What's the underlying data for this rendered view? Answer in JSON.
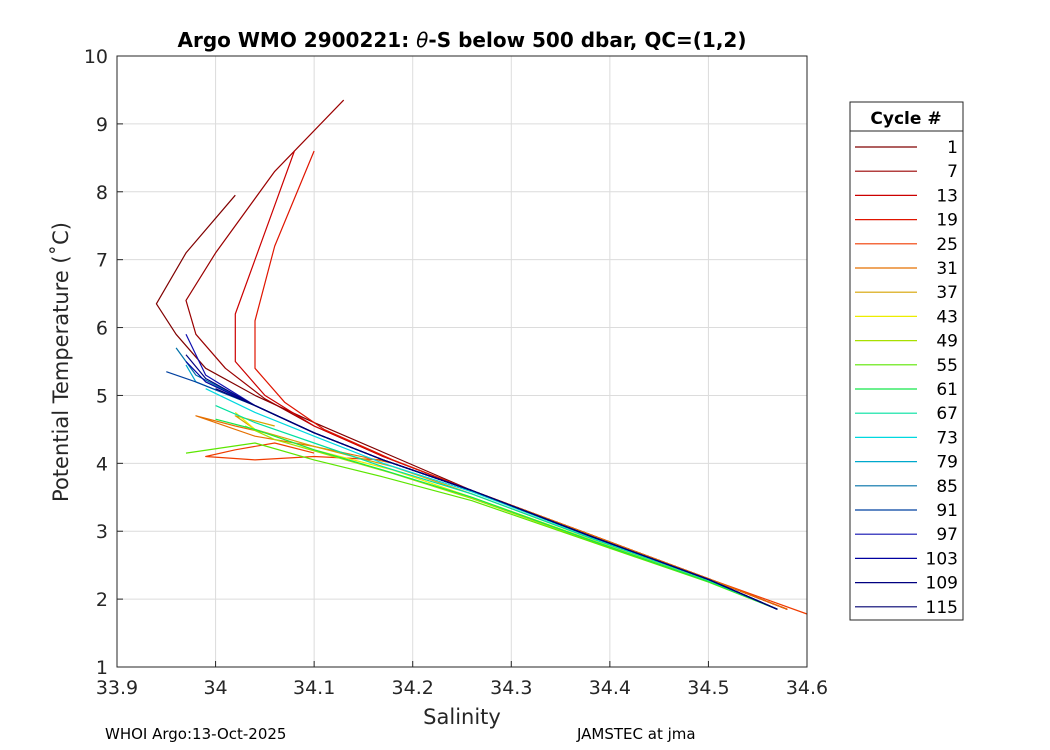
{
  "chart_data": {
    "type": "line",
    "title_prefix": "Argo WMO 2900221: ",
    "title_theta": "θ",
    "title_suffix": "-S below 500 dbar,  QC=(1,2)",
    "xlabel": "Salinity",
    "ylabel": "Potential Temperature (˚C)",
    "xlim": [
      33.9,
      34.6
    ],
    "ylim": [
      1,
      10
    ],
    "xticks": [
      33.9,
      34.0,
      34.1,
      34.2,
      34.3,
      34.4,
      34.5,
      34.6
    ],
    "xtick_labels": [
      "33.9",
      "34",
      "34.1",
      "34.2",
      "34.3",
      "34.4",
      "34.5",
      "34.6"
    ],
    "yticks": [
      1,
      2,
      3,
      4,
      5,
      6,
      7,
      8,
      9,
      10
    ],
    "ytick_labels": [
      "1",
      "2",
      "3",
      "4",
      "5",
      "6",
      "7",
      "8",
      "9",
      "10"
    ],
    "grid": true,
    "legend_title": "Cycle #",
    "legend_position": "right-outside",
    "series": [
      {
        "name": "1",
        "color": "#800000",
        "x": [
          34.58,
          34.5,
          34.38,
          34.26,
          34.18,
          34.1,
          34.04,
          33.99,
          33.96,
          33.94,
          33.97,
          34.02
        ],
        "y": [
          1.85,
          2.3,
          2.95,
          3.6,
          4.1,
          4.6,
          5.0,
          5.4,
          5.9,
          6.35,
          7.1,
          7.95
        ]
      },
      {
        "name": "7",
        "color": "#9a0000",
        "x": [
          34.58,
          34.5,
          34.38,
          34.26,
          34.17,
          34.1,
          34.05,
          34.01,
          33.98,
          33.97,
          34.0,
          34.06,
          34.13
        ],
        "y": [
          1.85,
          2.3,
          2.95,
          3.6,
          4.1,
          4.55,
          4.95,
          5.4,
          5.9,
          6.4,
          7.1,
          8.3,
          9.35
        ]
      },
      {
        "name": "13",
        "color": "#cc0000",
        "x": [
          34.58,
          34.5,
          34.38,
          34.26,
          34.17,
          34.1,
          34.05,
          34.02,
          34.02,
          34.04,
          34.06,
          34.08
        ],
        "y": [
          1.85,
          2.3,
          2.95,
          3.6,
          4.1,
          4.55,
          5.0,
          5.5,
          6.2,
          7.0,
          7.8,
          8.6
        ]
      },
      {
        "name": "19",
        "color": "#e01500",
        "x": [
          34.58,
          34.5,
          34.38,
          34.26,
          34.18,
          34.11,
          34.07,
          34.04,
          34.04,
          34.06,
          34.1
        ],
        "y": [
          1.85,
          2.3,
          2.95,
          3.6,
          4.05,
          4.5,
          4.9,
          5.4,
          6.1,
          7.2,
          8.6
        ]
      },
      {
        "name": "25",
        "color": "#f03c00",
        "x": [
          34.6,
          34.5,
          34.38,
          34.26,
          34.17,
          34.1,
          34.04,
          33.99,
          34.02,
          34.06,
          34.1
        ],
        "y": [
          1.78,
          2.3,
          2.95,
          3.6,
          4.05,
          4.1,
          4.05,
          4.1,
          4.2,
          4.3,
          4.15
        ]
      },
      {
        "name": "31",
        "color": "#e57000",
        "x": [
          34.58,
          34.5,
          34.38,
          34.26,
          34.18,
          34.1,
          34.04,
          33.98,
          34.02,
          34.05
        ],
        "y": [
          1.85,
          2.3,
          2.95,
          3.6,
          4.0,
          4.25,
          4.4,
          4.7,
          4.55,
          4.45
        ]
      },
      {
        "name": "37",
        "color": "#d6a300",
        "x": [
          34.57,
          34.5,
          34.38,
          34.26,
          34.18,
          34.1,
          34.04,
          34.02,
          34.06
        ],
        "y": [
          1.85,
          2.28,
          2.9,
          3.55,
          3.95,
          4.25,
          4.5,
          4.7,
          4.55
        ]
      },
      {
        "name": "43",
        "color": "#eded00",
        "x": [
          34.57,
          34.5,
          34.38,
          34.26,
          34.18,
          34.1,
          34.04,
          34.02
        ],
        "y": [
          1.85,
          2.27,
          2.88,
          3.5,
          3.9,
          4.2,
          4.5,
          4.75
        ]
      },
      {
        "name": "49",
        "color": "#a8e000",
        "x": [
          34.57,
          34.5,
          34.38,
          34.26,
          34.18,
          34.12,
          34.06,
          34.03
        ],
        "y": [
          1.85,
          2.26,
          2.86,
          3.48,
          3.85,
          4.1,
          4.35,
          4.55
        ]
      },
      {
        "name": "55",
        "color": "#5ce600",
        "x": [
          34.57,
          34.5,
          34.38,
          34.26,
          34.17,
          34.1,
          34.04,
          33.97
        ],
        "y": [
          1.85,
          2.25,
          2.85,
          3.45,
          3.8,
          4.05,
          4.3,
          4.15
        ]
      },
      {
        "name": "61",
        "color": "#14e84a",
        "x": [
          34.57,
          34.5,
          34.38,
          34.26,
          34.17,
          34.1,
          34.04,
          34.0
        ],
        "y": [
          1.85,
          2.26,
          2.87,
          3.5,
          3.9,
          4.2,
          4.5,
          4.65
        ]
      },
      {
        "name": "67",
        "color": "#00e0a0",
        "x": [
          34.57,
          34.5,
          34.38,
          34.26,
          34.17,
          34.1,
          34.04,
          34.0
        ],
        "y": [
          1.85,
          2.28,
          2.9,
          3.55,
          3.95,
          4.3,
          4.6,
          4.85
        ]
      },
      {
        "name": "73",
        "color": "#00d8e0",
        "x": [
          34.57,
          34.5,
          34.38,
          34.26,
          34.17,
          34.1,
          34.04,
          33.99
        ],
        "y": [
          1.85,
          2.28,
          2.92,
          3.58,
          4.0,
          4.4,
          4.75,
          5.1
        ]
      },
      {
        "name": "79",
        "color": "#00a8cc",
        "x": [
          34.57,
          34.5,
          34.38,
          34.26,
          34.17,
          34.1,
          34.04,
          33.98,
          33.97
        ],
        "y": [
          1.85,
          2.29,
          2.93,
          3.6,
          4.05,
          4.45,
          4.85,
          5.2,
          5.45
        ]
      },
      {
        "name": "85",
        "color": "#0070a8",
        "x": [
          34.57,
          34.5,
          34.38,
          34.26,
          34.17,
          34.1,
          34.04,
          33.98,
          33.96
        ],
        "y": [
          1.85,
          2.29,
          2.93,
          3.6,
          4.05,
          4.45,
          4.85,
          5.3,
          5.7
        ]
      },
      {
        "name": "91",
        "color": "#0040a0",
        "x": [
          34.57,
          34.5,
          34.38,
          34.26,
          34.17,
          34.1,
          34.04,
          33.98,
          33.95
        ],
        "y": [
          1.85,
          2.29,
          2.93,
          3.6,
          4.05,
          4.45,
          4.85,
          5.2,
          5.35
        ]
      },
      {
        "name": "97",
        "color": "#1010b0",
        "x": [
          34.57,
          34.5,
          34.38,
          34.26,
          34.17,
          34.1,
          34.04,
          33.99,
          33.97
        ],
        "y": [
          1.85,
          2.29,
          2.93,
          3.6,
          4.05,
          4.45,
          4.85,
          5.3,
          5.9
        ]
      },
      {
        "name": "103",
        "color": "#0000a0",
        "x": [
          34.57,
          34.5,
          34.38,
          34.26,
          34.17,
          34.1,
          34.04,
          33.99,
          33.97
        ],
        "y": [
          1.85,
          2.29,
          2.93,
          3.6,
          4.05,
          4.45,
          4.85,
          5.2,
          5.5
        ]
      },
      {
        "name": "109",
        "color": "#000080",
        "x": [
          34.57,
          34.5,
          34.38,
          34.26,
          34.17,
          34.1,
          34.04,
          33.99,
          33.97
        ],
        "y": [
          1.85,
          2.29,
          2.93,
          3.6,
          4.05,
          4.45,
          4.85,
          5.25,
          5.6
        ]
      },
      {
        "name": "115",
        "color": "#000070",
        "x": [
          34.57,
          34.5,
          34.38,
          34.26,
          34.17,
          34.1,
          34.04,
          34.0
        ],
        "y": [
          1.85,
          2.29,
          2.93,
          3.6,
          4.05,
          4.45,
          4.85,
          5.1
        ]
      }
    ]
  },
  "footer": {
    "left": "WHOI Argo:13-Oct-2025",
    "right": "JAMSTEC at jma"
  }
}
